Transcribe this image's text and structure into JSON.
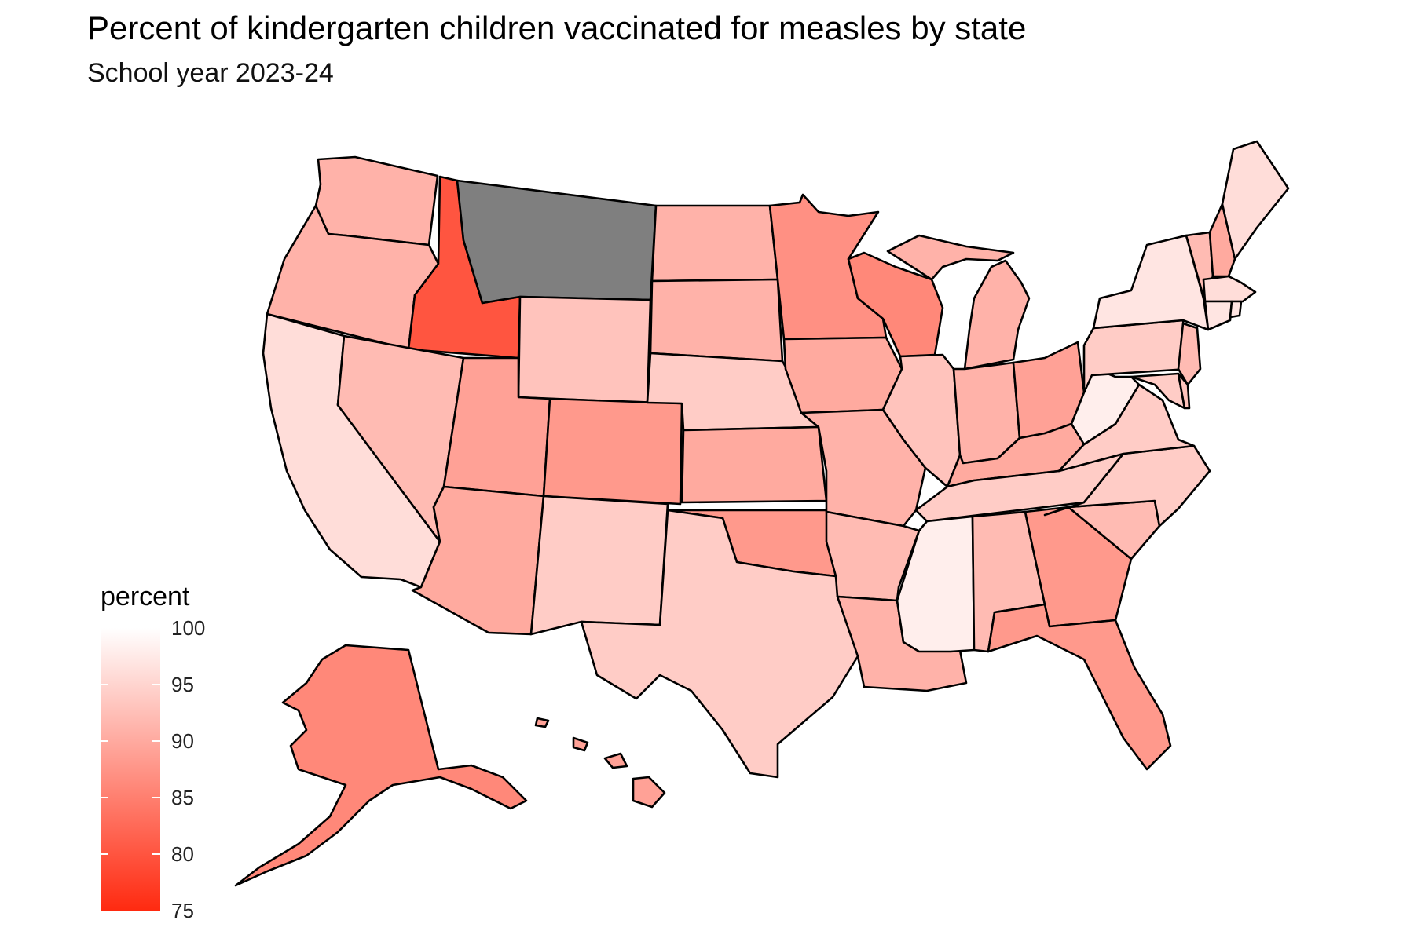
{
  "title": "Percent of kindergarten children vaccinated for measles by state",
  "subtitle": "School year 2023-24",
  "legend": {
    "title": "percent",
    "ticks": [
      "100",
      "95",
      "90",
      "85",
      "80",
      "75"
    ],
    "color_high": "#FFFFFF",
    "color_low": "#FF2A10",
    "color_missing": "#7F7F7F"
  },
  "chart_data": {
    "type": "choropleth",
    "value_range": [
      75,
      100
    ],
    "missing": [
      "Montana"
    ],
    "values": {
      "Washington": 91,
      "Oregon": 91,
      "California": 96,
      "Idaho": 80,
      "Montana": null,
      "Wyoming": 93,
      "Nevada": 92,
      "Utah": 89,
      "Arizona": 90,
      "Colorado": 88,
      "New Mexico": 94,
      "North Dakota": 91,
      "South Dakota": 91,
      "Nebraska": 94,
      "Kansas": 90,
      "Oklahoma": 88,
      "Texas": 94,
      "Minnesota": 87,
      "Iowa": 90,
      "Missouri": 91,
      "Arkansas": 92,
      "Louisiana": 91,
      "Wisconsin": 86,
      "Illinois": 93,
      "Indiana": 91,
      "Michigan": 91,
      "Ohio": 89,
      "Kentucky": 90,
      "Tennessee": 94,
      "Mississippi": 98,
      "Alabama": 92,
      "Georgia": 88,
      "Florida": 88,
      "South Carolina": 92,
      "North Carolina": 94,
      "Virginia": 94,
      "West Virginia": 98,
      "Pennsylvania": 94,
      "New York": 97,
      "New Jersey": 92,
      "Delaware": 93,
      "Maryland": 94,
      "Vermont": 92,
      "New Hampshire": 90,
      "Maine": 96,
      "Massachusetts": 96,
      "Connecticut": 97,
      "Rhode Island": 97,
      "Alaska": 86,
      "Hawaii": 89
    }
  }
}
